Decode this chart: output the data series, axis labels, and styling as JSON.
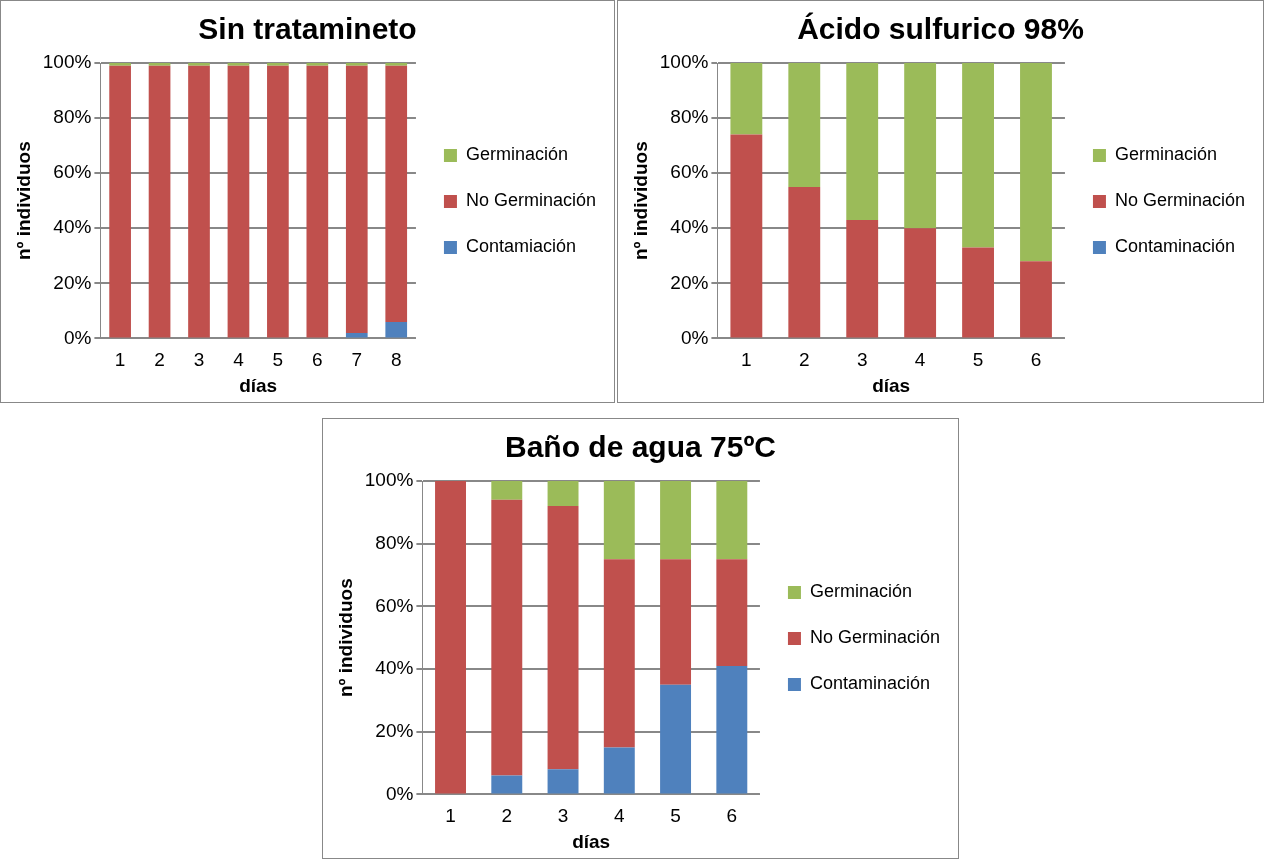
{
  "chart_data": [
    {
      "type": "bar",
      "title": "Sin tratamineto",
      "xlabel": "días",
      "ylabel": "nº individuos",
      "categories": [
        "1",
        "2",
        "3",
        "4",
        "5",
        "6",
        "7",
        "8"
      ],
      "stacked": true,
      "legend": "right",
      "grid": "y",
      "ylim": [
        0,
        100
      ],
      "yticks": [
        {
          "value": 0,
          "label": "0%"
        },
        {
          "value": 20,
          "label": "20%"
        },
        {
          "value": 40,
          "label": "40%"
        },
        {
          "value": 60,
          "label": "60%"
        },
        {
          "value": 80,
          "label": "80%"
        },
        {
          "value": 100,
          "label": "100%"
        }
      ],
      "series": [
        {
          "name": "Contamiación",
          "color": "#4f81bd",
          "values": [
            0,
            0,
            0,
            0,
            0,
            0,
            2,
            6
          ]
        },
        {
          "name": "No Germinación",
          "color": "#c0504d",
          "values": [
            99,
            99,
            99,
            99,
            99,
            99,
            97,
            93
          ]
        },
        {
          "name": "Germinación",
          "color": "#9bbb59",
          "values": [
            1,
            1,
            1,
            1,
            1,
            1,
            1,
            1
          ]
        }
      ]
    },
    {
      "type": "bar",
      "title": "Ácido sulfurico 98%",
      "xlabel": "días",
      "ylabel": "nº individuos",
      "categories": [
        "1",
        "2",
        "3",
        "4",
        "5",
        "6"
      ],
      "stacked": true,
      "legend": "right",
      "grid": "y",
      "ylim": [
        0,
        100
      ],
      "yticks": [
        {
          "value": 0,
          "label": "0%"
        },
        {
          "value": 20,
          "label": "20%"
        },
        {
          "value": 40,
          "label": "40%"
        },
        {
          "value": 60,
          "label": "60%"
        },
        {
          "value": 80,
          "label": "80%"
        },
        {
          "value": 100,
          "label": "100%"
        }
      ],
      "series": [
        {
          "name": "Contaminación",
          "color": "#4f81bd",
          "values": [
            0,
            0,
            0,
            0,
            0,
            0
          ]
        },
        {
          "name": "No Germinación",
          "color": "#c0504d",
          "values": [
            74,
            55,
            43,
            40,
            33,
            28
          ]
        },
        {
          "name": "Germinación",
          "color": "#9bbb59",
          "values": [
            26,
            45,
            57,
            60,
            67,
            72
          ]
        }
      ]
    },
    {
      "type": "bar",
      "title": "Baño de agua 75ºC",
      "xlabel": "días",
      "ylabel": "nº individuos",
      "categories": [
        "1",
        "2",
        "3",
        "4",
        "5",
        "6"
      ],
      "stacked": true,
      "legend": "right",
      "grid": "y",
      "ylim": [
        0,
        100
      ],
      "yticks": [
        {
          "value": 0,
          "label": "0%"
        },
        {
          "value": 20,
          "label": "20%"
        },
        {
          "value": 40,
          "label": "40%"
        },
        {
          "value": 60,
          "label": "60%"
        },
        {
          "value": 80,
          "label": "80%"
        },
        {
          "value": 100,
          "label": "100%"
        }
      ],
      "series": [
        {
          "name": "Contaminación",
          "color": "#4f81bd",
          "values": [
            0,
            6,
            8,
            15,
            35,
            41
          ]
        },
        {
          "name": "No Germinación",
          "color": "#c0504d",
          "values": [
            100,
            88,
            84,
            60,
            40,
            34
          ]
        },
        {
          "name": "Germinación",
          "color": "#9bbb59",
          "values": [
            0,
            6,
            8,
            25,
            25,
            25
          ]
        }
      ]
    }
  ]
}
